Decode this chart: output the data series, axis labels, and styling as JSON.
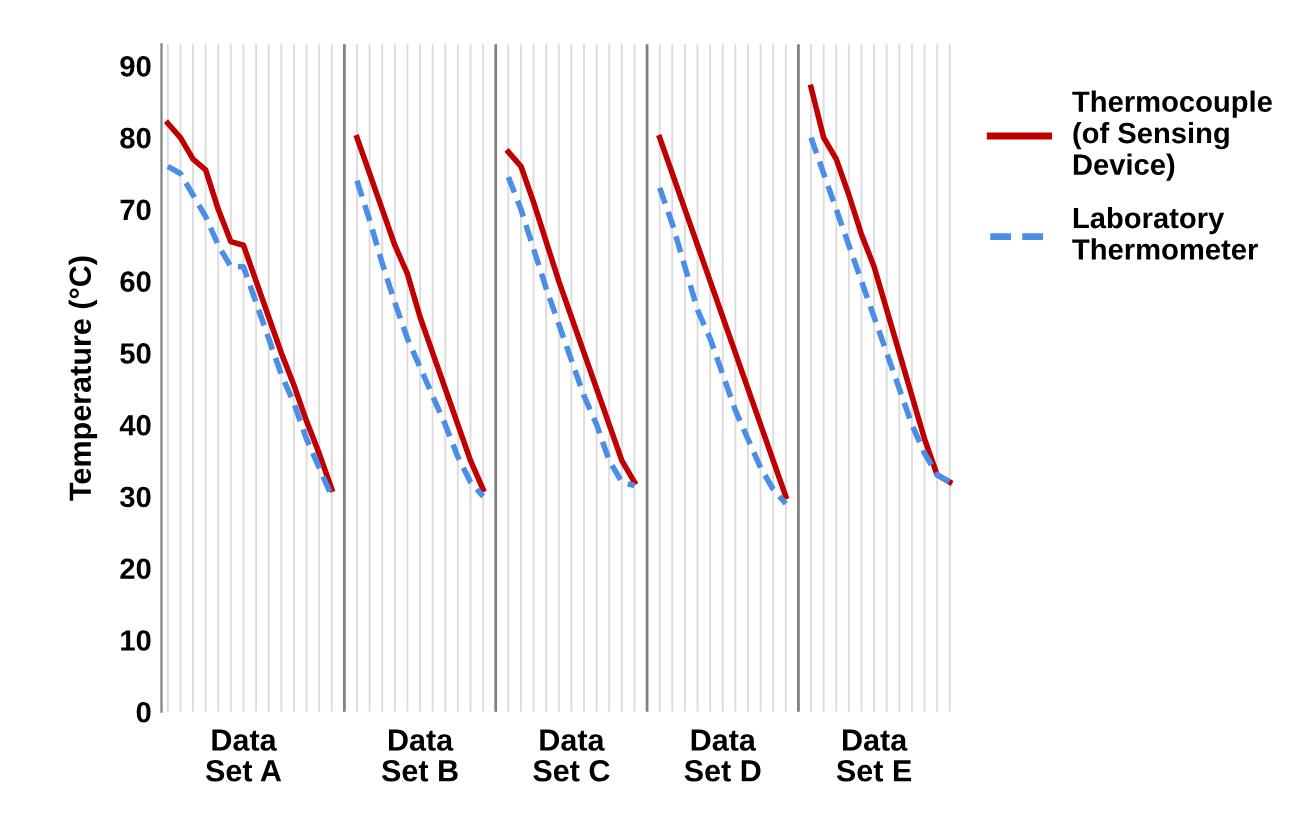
{
  "chart_data": {
    "type": "line",
    "ylabel": "Temperature (°C)",
    "ylim": [
      0,
      93
    ],
    "yticks": [
      0,
      10,
      20,
      30,
      40,
      50,
      60,
      70,
      80,
      90
    ],
    "grid": "x",
    "legend": "top right",
    "categories": [
      null,
      null,
      null,
      null,
      null,
      null,
      "Data\nSet A",
      null,
      null,
      null,
      null,
      null,
      null,
      null,
      null,
      null,
      null,
      null,
      null,
      null,
      "Data\nSet B",
      null,
      null,
      null,
      null,
      null,
      null,
      null,
      null,
      null,
      null,
      null,
      "Data\nSet C",
      null,
      null,
      null,
      null,
      null,
      null,
      null,
      null,
      null,
      null,
      null,
      "Data\nSet D",
      null,
      null,
      null,
      null,
      null,
      null,
      null,
      null,
      null,
      null,
      null,
      "Data\nSet E",
      null,
      null,
      null,
      null,
      null,
      null
    ],
    "series": [
      {
        "name": "Thermocouple (of Sensing Device)",
        "color": "#c00000",
        "line_style": "solid",
        "values": [
          82,
          80,
          77,
          75.5,
          70,
          65.5,
          65,
          60,
          55,
          50,
          45.5,
          40.5,
          36,
          31,
          null,
          80,
          75,
          70,
          65,
          61,
          55,
          50,
          45,
          40,
          35,
          31,
          null,
          78,
          76,
          71,
          65.5,
          60,
          55,
          50,
          45,
          40,
          35,
          32,
          null,
          80,
          75,
          70,
          65,
          60,
          55,
          50,
          45,
          40,
          35,
          30,
          null,
          87,
          80,
          77,
          72,
          66.5,
          62,
          56,
          50,
          44,
          38,
          33,
          32
        ]
      },
      {
        "name": "Laboratory Thermometer",
        "color": "#4a8ee8",
        "line_style": "dashed",
        "values": [
          76,
          75,
          72,
          69,
          65,
          62,
          62,
          57,
          52,
          47,
          43,
          38,
          34,
          30,
          null,
          74,
          68.5,
          62.5,
          57,
          52,
          48,
          44,
          40,
          35.5,
          32,
          30,
          null,
          74.5,
          70,
          64.5,
          59,
          54,
          49,
          44,
          40,
          35,
          32,
          31.5,
          null,
          73,
          68,
          62,
          56,
          52,
          47,
          42,
          38,
          34,
          31,
          29,
          null,
          80,
          75,
          70,
          65,
          60,
          55,
          50,
          45,
          40,
          36,
          33,
          32
        ]
      }
    ]
  }
}
